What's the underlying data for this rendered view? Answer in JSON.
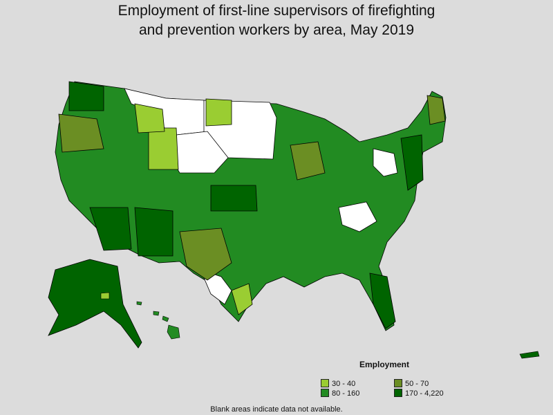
{
  "title_line1": "Employment of first-line supervisors of firefighting",
  "title_line2": "and prevention workers by area, May 2019",
  "legend": {
    "title": "Employment",
    "items": [
      {
        "label": "30 - 40",
        "color": "#9acd32"
      },
      {
        "label": "50 - 70",
        "color": "#6b8e23"
      },
      {
        "label": "80 - 160",
        "color": "#228b22"
      },
      {
        "label": "170 - 4,220",
        "color": "#006400"
      }
    ]
  },
  "note": "Blank areas indicate data not available.",
  "colors": {
    "background": "#dcdcdc",
    "no_data": "#ffffff",
    "border": "#000000"
  }
}
